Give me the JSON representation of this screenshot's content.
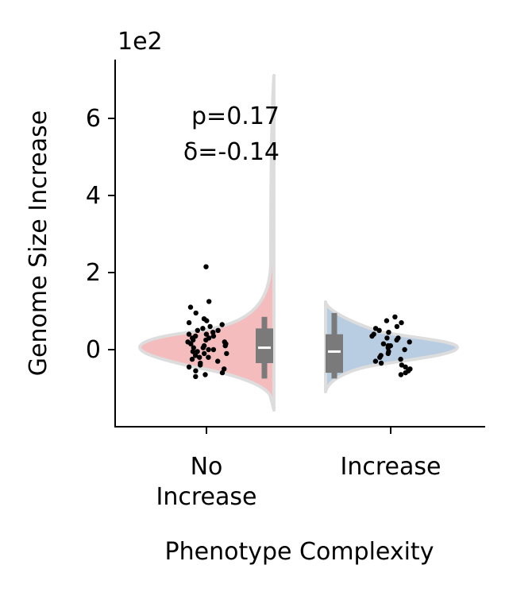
{
  "chart_data": {
    "type": "violin",
    "title": "",
    "xlabel": "Phenotype Complexity",
    "ylabel": "Genome Size Increase",
    "y_offset_label": "1e2",
    "ylim": [
      -2.0,
      7.5
    ],
    "yticks": [
      0,
      2,
      4,
      6
    ],
    "categories": [
      {
        "label_lines": [
          "No",
          "Increase"
        ],
        "color": "#f4bcbc"
      },
      {
        "label_lines": [
          "Increase"
        ],
        "color": "#b9cde2"
      }
    ],
    "outline_color": "#dddddd",
    "box_color": "#7a7a7a",
    "median_color": "#ffffff",
    "point_color": "#000000",
    "series": [
      {
        "box": {
          "q1": -0.35,
          "median": 0.05,
          "q3": 0.55,
          "whisker_low": -0.75,
          "whisker_high": 0.85
        },
        "points": [
          2.15,
          1.25,
          1.1,
          0.95,
          0.8,
          0.75,
          0.7,
          0.65,
          0.6,
          0.55,
          0.5,
          0.5,
          0.45,
          0.4,
          0.4,
          0.35,
          0.35,
          0.3,
          0.3,
          0.25,
          0.25,
          0.2,
          0.2,
          0.15,
          0.15,
          0.1,
          0.1,
          0.05,
          0.05,
          0.0,
          0.0,
          -0.05,
          -0.05,
          -0.1,
          -0.1,
          -0.15,
          -0.2,
          -0.2,
          -0.25,
          -0.3,
          -0.35,
          -0.4,
          -0.45,
          -0.5,
          -0.55,
          -0.6,
          -0.65,
          -0.7
        ]
      },
      {
        "box": {
          "q1": -0.6,
          "median": -0.05,
          "q3": 0.4,
          "whisker_low": -0.75,
          "whisker_high": 0.95
        },
        "points": [
          0.85,
          0.75,
          0.7,
          0.6,
          0.55,
          0.5,
          0.45,
          0.4,
          0.35,
          0.3,
          0.3,
          0.25,
          0.2,
          0.15,
          0.1,
          0.1,
          0.05,
          0.0,
          -0.05,
          -0.1,
          -0.15,
          -0.2,
          -0.25,
          -0.3,
          -0.35,
          -0.4,
          -0.45,
          -0.5,
          -0.55,
          -0.6,
          -0.65
        ]
      }
    ],
    "annotation": {
      "p_text": "p=0.17",
      "delta_text": "δ=-0.14"
    }
  }
}
